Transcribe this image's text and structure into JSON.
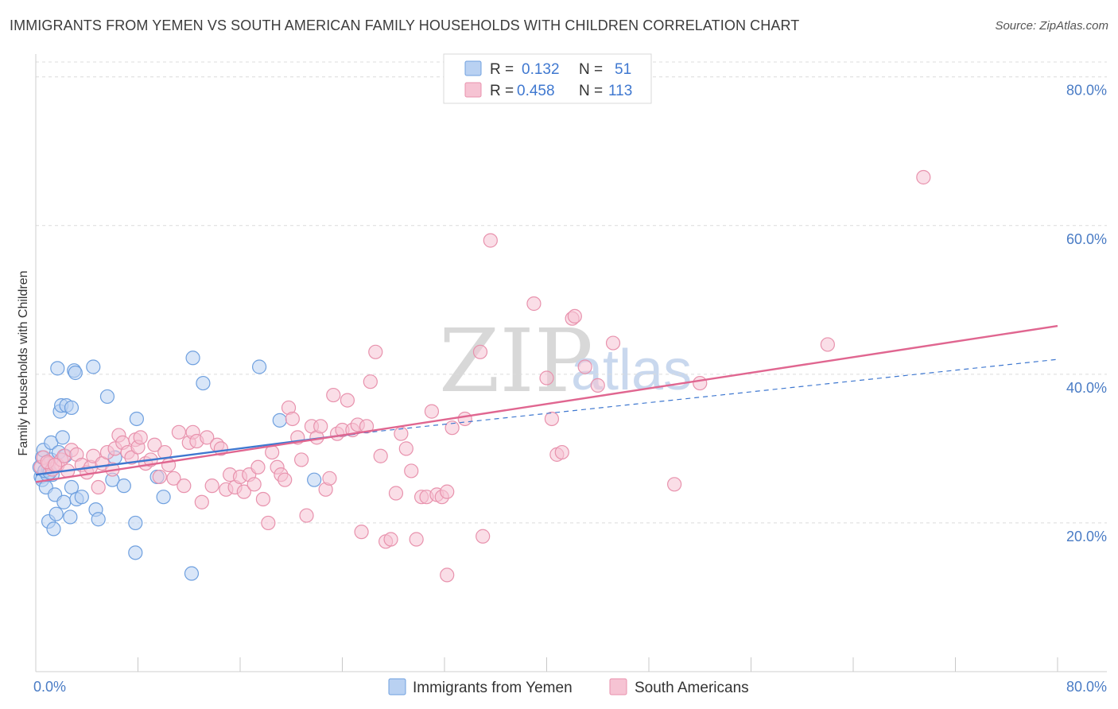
{
  "header": {
    "title": "IMMIGRANTS FROM YEMEN VS SOUTH AMERICAN FAMILY HOUSEHOLDS WITH CHILDREN CORRELATION CHART",
    "source": "Source: ZipAtlas.com"
  },
  "watermark": {
    "zip": "ZIP",
    "atlas": "atlas"
  },
  "colors": {
    "blue": "#6fa0df",
    "blue_fill": "#b9d1f2",
    "blue_line": "#3f78d0",
    "pink": "#e892ad",
    "pink_fill": "#f6c3d3",
    "pink_line": "#e06690",
    "tick_text": "#4a7cc5",
    "grid": "#dcdcdc"
  },
  "chart_data": {
    "type": "scatter",
    "title": "IMMIGRANTS FROM YEMEN VS SOUTH AMERICAN FAMILY HOUSEHOLDS WITH CHILDREN CORRELATION CHART",
    "xlabel": "",
    "ylabel": "Family Households with Children",
    "xlim": [
      0,
      80
    ],
    "ylim": [
      0,
      82
    ],
    "x_tick_labels": {
      "min": "0.0%",
      "max": "80.0%"
    },
    "y_ticks": [
      {
        "value": 20,
        "label": "20.0%"
      },
      {
        "value": 40,
        "label": "40.0%"
      },
      {
        "value": 60,
        "label": "60.0%"
      },
      {
        "value": 80,
        "label": "80.0%"
      }
    ],
    "legend": {
      "position": "top-center",
      "entries": [
        {
          "series": "yemen",
          "r_label": "R =",
          "r_value": "0.132",
          "n_label": "N =",
          "n_value": "51"
        },
        {
          "series": "south_american",
          "r_label": "R =",
          "r_value": "0.458",
          "n_label": "N =",
          "n_value": "113"
        }
      ]
    },
    "bottom_legend": [
      "Immigrants from Yemen",
      "South Americans"
    ],
    "series": [
      {
        "name": "Immigrants from Yemen",
        "key": "yemen",
        "trend_solid": {
          "x0": 0,
          "y0": 26.5,
          "x1": 25,
          "y1": 32.0
        },
        "trend_dashed": {
          "x0": 25,
          "y0": 32.0,
          "x1": 80,
          "y1": 42.0
        },
        "points": [
          [
            0.3,
            27.5
          ],
          [
            0.4,
            26.2
          ],
          [
            0.5,
            28.8
          ],
          [
            0.5,
            25.8
          ],
          [
            0.6,
            29.8
          ],
          [
            0.7,
            27.0
          ],
          [
            0.8,
            24.8
          ],
          [
            0.9,
            26.5
          ],
          [
            1.0,
            27.2
          ],
          [
            1.0,
            20.2
          ],
          [
            1.2,
            28.5
          ],
          [
            1.2,
            30.8
          ],
          [
            1.3,
            26.5
          ],
          [
            1.4,
            19.2
          ],
          [
            1.5,
            23.8
          ],
          [
            1.6,
            21.2
          ],
          [
            1.7,
            40.8
          ],
          [
            1.8,
            29.5
          ],
          [
            1.9,
            35.0
          ],
          [
            2.0,
            35.8
          ],
          [
            2.1,
            31.5
          ],
          [
            2.2,
            22.8
          ],
          [
            2.3,
            29.0
          ],
          [
            2.4,
            35.8
          ],
          [
            2.7,
            20.8
          ],
          [
            2.8,
            35.5
          ],
          [
            2.8,
            24.8
          ],
          [
            3.0,
            40.5
          ],
          [
            3.1,
            40.2
          ],
          [
            3.2,
            23.2
          ],
          [
            3.6,
            23.5
          ],
          [
            4.5,
            41.0
          ],
          [
            4.7,
            21.8
          ],
          [
            4.9,
            20.5
          ],
          [
            5.6,
            37.0
          ],
          [
            6.0,
            25.8
          ],
          [
            6.2,
            28.8
          ],
          [
            6.9,
            25.0
          ],
          [
            7.8,
            20.0
          ],
          [
            7.9,
            34.0
          ],
          [
            7.8,
            16.0
          ],
          [
            9.5,
            26.2
          ],
          [
            10.0,
            23.5
          ],
          [
            12.3,
            42.2
          ],
          [
            12.2,
            13.2
          ],
          [
            13.1,
            38.8
          ],
          [
            17.5,
            41.0
          ],
          [
            19.1,
            33.8
          ],
          [
            21.8,
            25.8
          ],
          [
            0.7,
            27.0
          ],
          [
            1.1,
            26.8
          ]
        ]
      },
      {
        "name": "South Americans",
        "key": "south_american",
        "trend_solid": {
          "x0": 0,
          "y0": 25.5,
          "x1": 80,
          "y1": 46.5
        },
        "points": [
          [
            0.4,
            27.5
          ],
          [
            0.6,
            28.8
          ],
          [
            1.0,
            28.0
          ],
          [
            1.3,
            27.2
          ],
          [
            1.7,
            27.8
          ],
          [
            2.0,
            28.5
          ],
          [
            2.2,
            29.0
          ],
          [
            2.5,
            27.0
          ],
          [
            2.8,
            29.8
          ],
          [
            3.2,
            29.2
          ],
          [
            3.6,
            27.8
          ],
          [
            4.0,
            26.8
          ],
          [
            4.3,
            27.5
          ],
          [
            4.5,
            29.0
          ],
          [
            4.9,
            24.8
          ],
          [
            5.2,
            28.0
          ],
          [
            5.6,
            29.5
          ],
          [
            6.0,
            27.2
          ],
          [
            6.2,
            30.0
          ],
          [
            6.5,
            31.8
          ],
          [
            6.8,
            30.8
          ],
          [
            7.2,
            29.5
          ],
          [
            7.5,
            28.8
          ],
          [
            7.8,
            31.2
          ],
          [
            8.0,
            30.2
          ],
          [
            8.2,
            31.5
          ],
          [
            8.6,
            28.0
          ],
          [
            9.0,
            28.5
          ],
          [
            9.3,
            30.5
          ],
          [
            9.7,
            26.2
          ],
          [
            10.1,
            29.5
          ],
          [
            10.4,
            27.8
          ],
          [
            10.8,
            26.0
          ],
          [
            11.2,
            32.2
          ],
          [
            11.6,
            25.0
          ],
          [
            12.0,
            30.8
          ],
          [
            12.3,
            32.2
          ],
          [
            12.6,
            31.0
          ],
          [
            13.0,
            22.8
          ],
          [
            13.4,
            31.5
          ],
          [
            13.8,
            25.0
          ],
          [
            14.2,
            30.5
          ],
          [
            14.5,
            30.0
          ],
          [
            14.9,
            24.5
          ],
          [
            15.2,
            26.5
          ],
          [
            15.6,
            24.8
          ],
          [
            16.0,
            26.2
          ],
          [
            16.3,
            24.2
          ],
          [
            16.7,
            26.5
          ],
          [
            17.1,
            25.2
          ],
          [
            17.4,
            27.5
          ],
          [
            17.8,
            23.2
          ],
          [
            18.2,
            20.0
          ],
          [
            18.5,
            29.5
          ],
          [
            18.9,
            27.5
          ],
          [
            19.2,
            26.5
          ],
          [
            19.5,
            25.8
          ],
          [
            19.8,
            35.5
          ],
          [
            20.1,
            34.0
          ],
          [
            20.5,
            31.5
          ],
          [
            20.8,
            28.5
          ],
          [
            21.2,
            21.0
          ],
          [
            21.6,
            33.0
          ],
          [
            22.0,
            31.5
          ],
          [
            22.3,
            33.0
          ],
          [
            22.7,
            24.5
          ],
          [
            23.0,
            26.0
          ],
          [
            23.3,
            37.2
          ],
          [
            23.6,
            32.0
          ],
          [
            24.0,
            32.5
          ],
          [
            24.4,
            36.5
          ],
          [
            24.8,
            32.5
          ],
          [
            25.2,
            33.2
          ],
          [
            25.5,
            18.8
          ],
          [
            25.9,
            33.0
          ],
          [
            26.2,
            39.0
          ],
          [
            26.6,
            43.0
          ],
          [
            27.0,
            29.0
          ],
          [
            27.4,
            17.5
          ],
          [
            27.8,
            17.8
          ],
          [
            28.2,
            24.0
          ],
          [
            28.6,
            32.0
          ],
          [
            29.0,
            30.0
          ],
          [
            29.4,
            27.0
          ],
          [
            29.8,
            17.8
          ],
          [
            30.2,
            23.5
          ],
          [
            30.6,
            23.5
          ],
          [
            31.0,
            35.0
          ],
          [
            31.4,
            23.8
          ],
          [
            31.8,
            23.5
          ],
          [
            32.2,
            24.2
          ],
          [
            32.2,
            13.0
          ],
          [
            32.6,
            32.8
          ],
          [
            33.6,
            34.0
          ],
          [
            34.8,
            43.0
          ],
          [
            35.0,
            18.2
          ],
          [
            35.6,
            58.0
          ],
          [
            39.0,
            49.5
          ],
          [
            40.0,
            39.5
          ],
          [
            40.4,
            34.0
          ],
          [
            40.8,
            29.2
          ],
          [
            41.2,
            29.5
          ],
          [
            42.0,
            47.5
          ],
          [
            42.2,
            47.8
          ],
          [
            43.0,
            41.0
          ],
          [
            44.0,
            38.5
          ],
          [
            45.2,
            44.2
          ],
          [
            50.0,
            25.2
          ],
          [
            52.0,
            38.8
          ],
          [
            62.0,
            44.0
          ],
          [
            69.5,
            66.5
          ],
          [
            0.9,
            28.2
          ],
          [
            1.5,
            27.8
          ]
        ]
      }
    ]
  }
}
